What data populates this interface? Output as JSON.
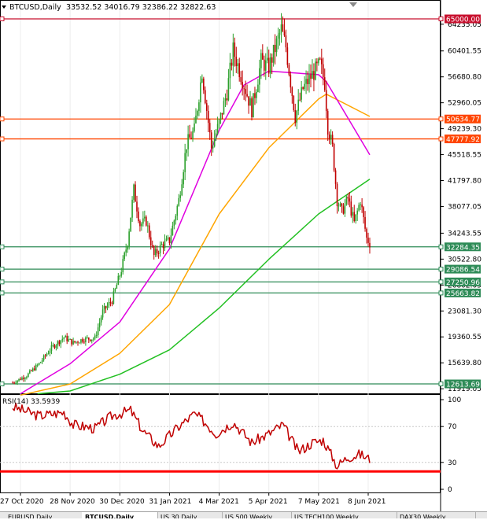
{
  "header": {
    "symbol_tf": "BTCUSD,Daily",
    "ohlc": "33532.52 34016.79 32386.22 32822.63"
  },
  "price_axis_ticks": [
    "64235.05",
    "60401.55",
    "56680.80",
    "52960.05",
    "49239.30",
    "45518.55",
    "41797.80",
    "38077.05",
    "34243.55",
    "30522.80",
    "26802.05",
    "23081.30",
    "19360.55",
    "15639.80",
    "11919.05"
  ],
  "price_lines": [
    {
      "value": 65000.0,
      "label": "65000.00",
      "color": "#c8102e"
    },
    {
      "value": 50634.77,
      "label": "50634.77",
      "color": "#ff4500"
    },
    {
      "value": 47777.92,
      "label": "47777.92",
      "color": "#ff4500"
    },
    {
      "value": 32284.35,
      "label": "32284.35",
      "color": "#2e8b57"
    },
    {
      "value": 29086.54,
      "label": "29086.54",
      "color": "#2e8b57"
    },
    {
      "value": 27250.96,
      "label": "27250.96",
      "color": "#2e8b57"
    },
    {
      "value": 25663.82,
      "label": "25663.82",
      "color": "#2e8b57"
    },
    {
      "value": 12613.69,
      "label": "12613.69",
      "color": "#2e8b57"
    }
  ],
  "rsi": {
    "label": "RSI(14) 33.5939",
    "ticks": [
      "100",
      "70",
      "30",
      "0"
    ],
    "red_line_level": 20
  },
  "date_labels": [
    "27 Oct 2020",
    "28 Nov 2020",
    "30 Dec 2020",
    "31 Jan 2021",
    "4 Mar 2021",
    "5 Apr 2021",
    "7 May 2021",
    "8 Jun 2021"
  ],
  "colors": {
    "candle_up": "#2ca02c",
    "candle_down": "#c00000",
    "ma_fast": "#e000e0",
    "ma_mid": "#ffa500",
    "ma_slow": "#22c022",
    "rsi_line": "#c00000"
  },
  "tabs": [
    {
      "label": "EURUSD,Daily",
      "active": false
    },
    {
      "label": "BTCUSD,Daily",
      "active": true
    },
    {
      "label": "US 30,Daily",
      "active": false
    },
    {
      "label": "US 500,Weekly",
      "active": false
    },
    {
      "label": "US TECH100,Weekly",
      "active": false
    },
    {
      "label": "DAX30,Weekly",
      "active": false
    }
  ],
  "chart_data": {
    "type": "candlestick",
    "title": "BTCUSD,Daily",
    "ylim": [
      10500,
      66500
    ],
    "x": [
      "2020-10-27",
      "2020-11-28",
      "2020-12-30",
      "2021-01-31",
      "2021-03-04",
      "2021-04-05",
      "2021-05-07",
      "2021-06-08"
    ],
    "close_path": [
      [
        "2020-10-22",
        12800
      ],
      [
        "2020-10-31",
        13800
      ],
      [
        "2020-11-08",
        15500
      ],
      [
        "2020-11-16",
        17800
      ],
      [
        "2020-11-24",
        19300
      ],
      [
        "2020-11-30",
        18500
      ],
      [
        "2020-12-06",
        19000
      ],
      [
        "2020-12-14",
        19200
      ],
      [
        "2020-12-19",
        23000
      ],
      [
        "2020-12-25",
        24600
      ],
      [
        "2020-12-31",
        29000
      ],
      [
        "2021-01-04",
        33000
      ],
      [
        "2021-01-08",
        40500
      ],
      [
        "2021-01-12",
        35500
      ],
      [
        "2021-01-16",
        36000
      ],
      [
        "2021-01-21",
        31000
      ],
      [
        "2021-01-26",
        32500
      ],
      [
        "2021-01-31",
        33200
      ],
      [
        "2021-02-06",
        39000
      ],
      [
        "2021-02-11",
        47000
      ],
      [
        "2021-02-16",
        49000
      ],
      [
        "2021-02-21",
        57500
      ],
      [
        "2021-02-27",
        46500
      ],
      [
        "2021-03-04",
        50000
      ],
      [
        "2021-03-09",
        54500
      ],
      [
        "2021-03-13",
        60500
      ],
      [
        "2021-03-18",
        57000
      ],
      [
        "2021-03-25",
        52000
      ],
      [
        "2021-03-31",
        58900
      ],
      [
        "2021-04-05",
        58000
      ],
      [
        "2021-04-13",
        63500
      ],
      [
        "2021-04-16",
        61000
      ],
      [
        "2021-04-22",
        51000
      ],
      [
        "2021-04-27",
        55000
      ],
      [
        "2021-05-03",
        57000
      ],
      [
        "2021-05-08",
        58500
      ],
      [
        "2021-05-11",
        55800
      ],
      [
        "2021-05-13",
        49500
      ],
      [
        "2021-05-16",
        46500
      ],
      [
        "2021-05-19",
        39000
      ],
      [
        "2021-05-22",
        37300
      ],
      [
        "2021-05-26",
        39200
      ],
      [
        "2021-05-30",
        35700
      ],
      [
        "2021-06-03",
        39000
      ],
      [
        "2021-06-07",
        33500
      ],
      [
        "2021-06-09",
        32800
      ]
    ],
    "moving_averages": {
      "fast": [
        [
          "2020-10-27",
          11200
        ],
        [
          "2020-11-28",
          15500
        ],
        [
          "2020-12-30",
          21500
        ],
        [
          "2021-01-31",
          32000
        ],
        [
          "2021-03-04",
          49000
        ],
        [
          "2021-03-20",
          55500
        ],
        [
          "2021-04-05",
          57500
        ],
        [
          "2021-05-07",
          57000
        ],
        [
          "2021-05-12",
          56000
        ],
        [
          "2021-06-09",
          45500
        ]
      ],
      "mid": [
        [
          "2020-10-27",
          11000
        ],
        [
          "2020-11-28",
          12600
        ],
        [
          "2020-12-30",
          17000
        ],
        [
          "2021-01-31",
          24000
        ],
        [
          "2021-03-04",
          37000
        ],
        [
          "2021-04-05",
          46500
        ],
        [
          "2021-05-07",
          53500
        ],
        [
          "2021-05-12",
          54200
        ],
        [
          "2021-06-09",
          51000
        ]
      ],
      "slow": [
        [
          "2020-11-07",
          11200
        ],
        [
          "2020-11-28",
          11600
        ],
        [
          "2020-12-30",
          14000
        ],
        [
          "2021-01-31",
          17500
        ],
        [
          "2021-03-04",
          23500
        ],
        [
          "2021-04-05",
          30500
        ],
        [
          "2021-05-07",
          37000
        ],
        [
          "2021-06-09",
          42000
        ]
      ]
    },
    "rsi_path": [
      [
        "2020-10-22",
        92
      ],
      [
        "2020-11-08",
        82
      ],
      [
        "2020-11-24",
        86
      ],
      [
        "2020-11-30",
        72
      ],
      [
        "2020-12-14",
        68
      ],
      [
        "2020-12-25",
        82
      ],
      [
        "2021-01-06",
        88
      ],
      [
        "2021-01-14",
        65
      ],
      [
        "2021-01-24",
        48
      ],
      [
        "2021-02-06",
        70
      ],
      [
        "2021-02-16",
        84
      ],
      [
        "2021-02-22",
        76
      ],
      [
        "2021-03-02",
        62
      ],
      [
        "2021-03-13",
        75
      ],
      [
        "2021-03-25",
        52
      ],
      [
        "2021-04-05",
        62
      ],
      [
        "2021-04-14",
        72
      ],
      [
        "2021-04-24",
        42
      ],
      [
        "2021-05-03",
        52
      ],
      [
        "2021-05-10",
        55
      ],
      [
        "2021-05-16",
        36
      ],
      [
        "2021-05-19",
        26
      ],
      [
        "2021-05-26",
        36
      ],
      [
        "2021-06-03",
        39
      ],
      [
        "2021-06-09",
        33.59
      ]
    ]
  }
}
